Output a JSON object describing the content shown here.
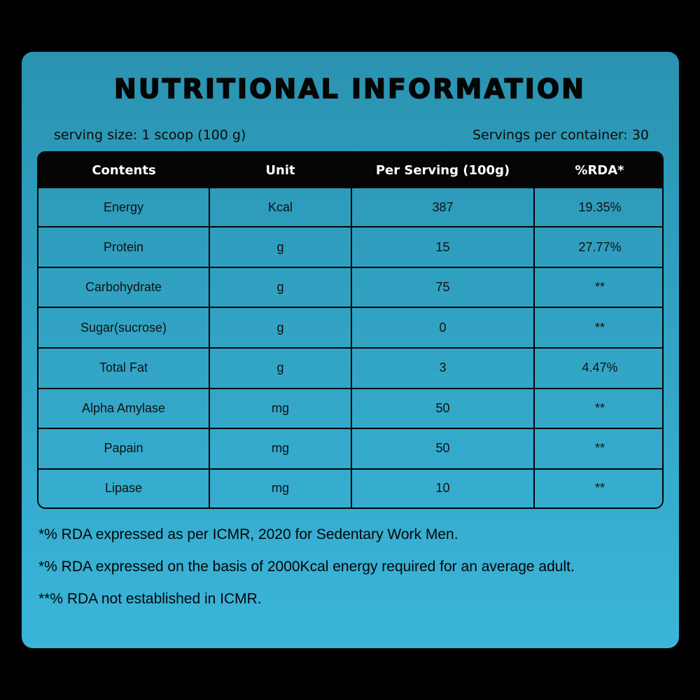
{
  "title": "NUTRITIONAL INFORMATION",
  "serving_size": "serving size: 1 scoop (100 g)",
  "servings_per_container": "Servings per container: 30",
  "table": {
    "headers": [
      "Contents",
      "Unit",
      "Per Serving (100g)",
      "%RDA*"
    ],
    "rows": [
      [
        "Energy",
        "Kcal",
        "387",
        "19.35%"
      ],
      [
        "Protein",
        "g",
        "15",
        "27.77%"
      ],
      [
        "Carbohydrate",
        "g",
        "75",
        "**"
      ],
      [
        "Sugar(sucrose)",
        "g",
        "0",
        "**"
      ],
      [
        "Total Fat",
        "g",
        "3",
        "4.47%"
      ],
      [
        "Alpha Amylase",
        "mg",
        "50",
        "**"
      ],
      [
        "Papain",
        "mg",
        "50",
        "**"
      ],
      [
        "Lipase",
        "mg",
        "10",
        "**"
      ]
    ]
  },
  "notes": [
    "*% RDA expressed as per ICMR, 2020 for Sedentary Work Men.",
    "*% RDA expressed on the basis of 2000Kcal energy required for an average adult.",
    "**% RDA not established in ICMR."
  ],
  "colors": {
    "background": "#000000",
    "card_top": "#2a93b1",
    "card_bottom": "#3ab5d9",
    "header_bg": "#050505"
  }
}
